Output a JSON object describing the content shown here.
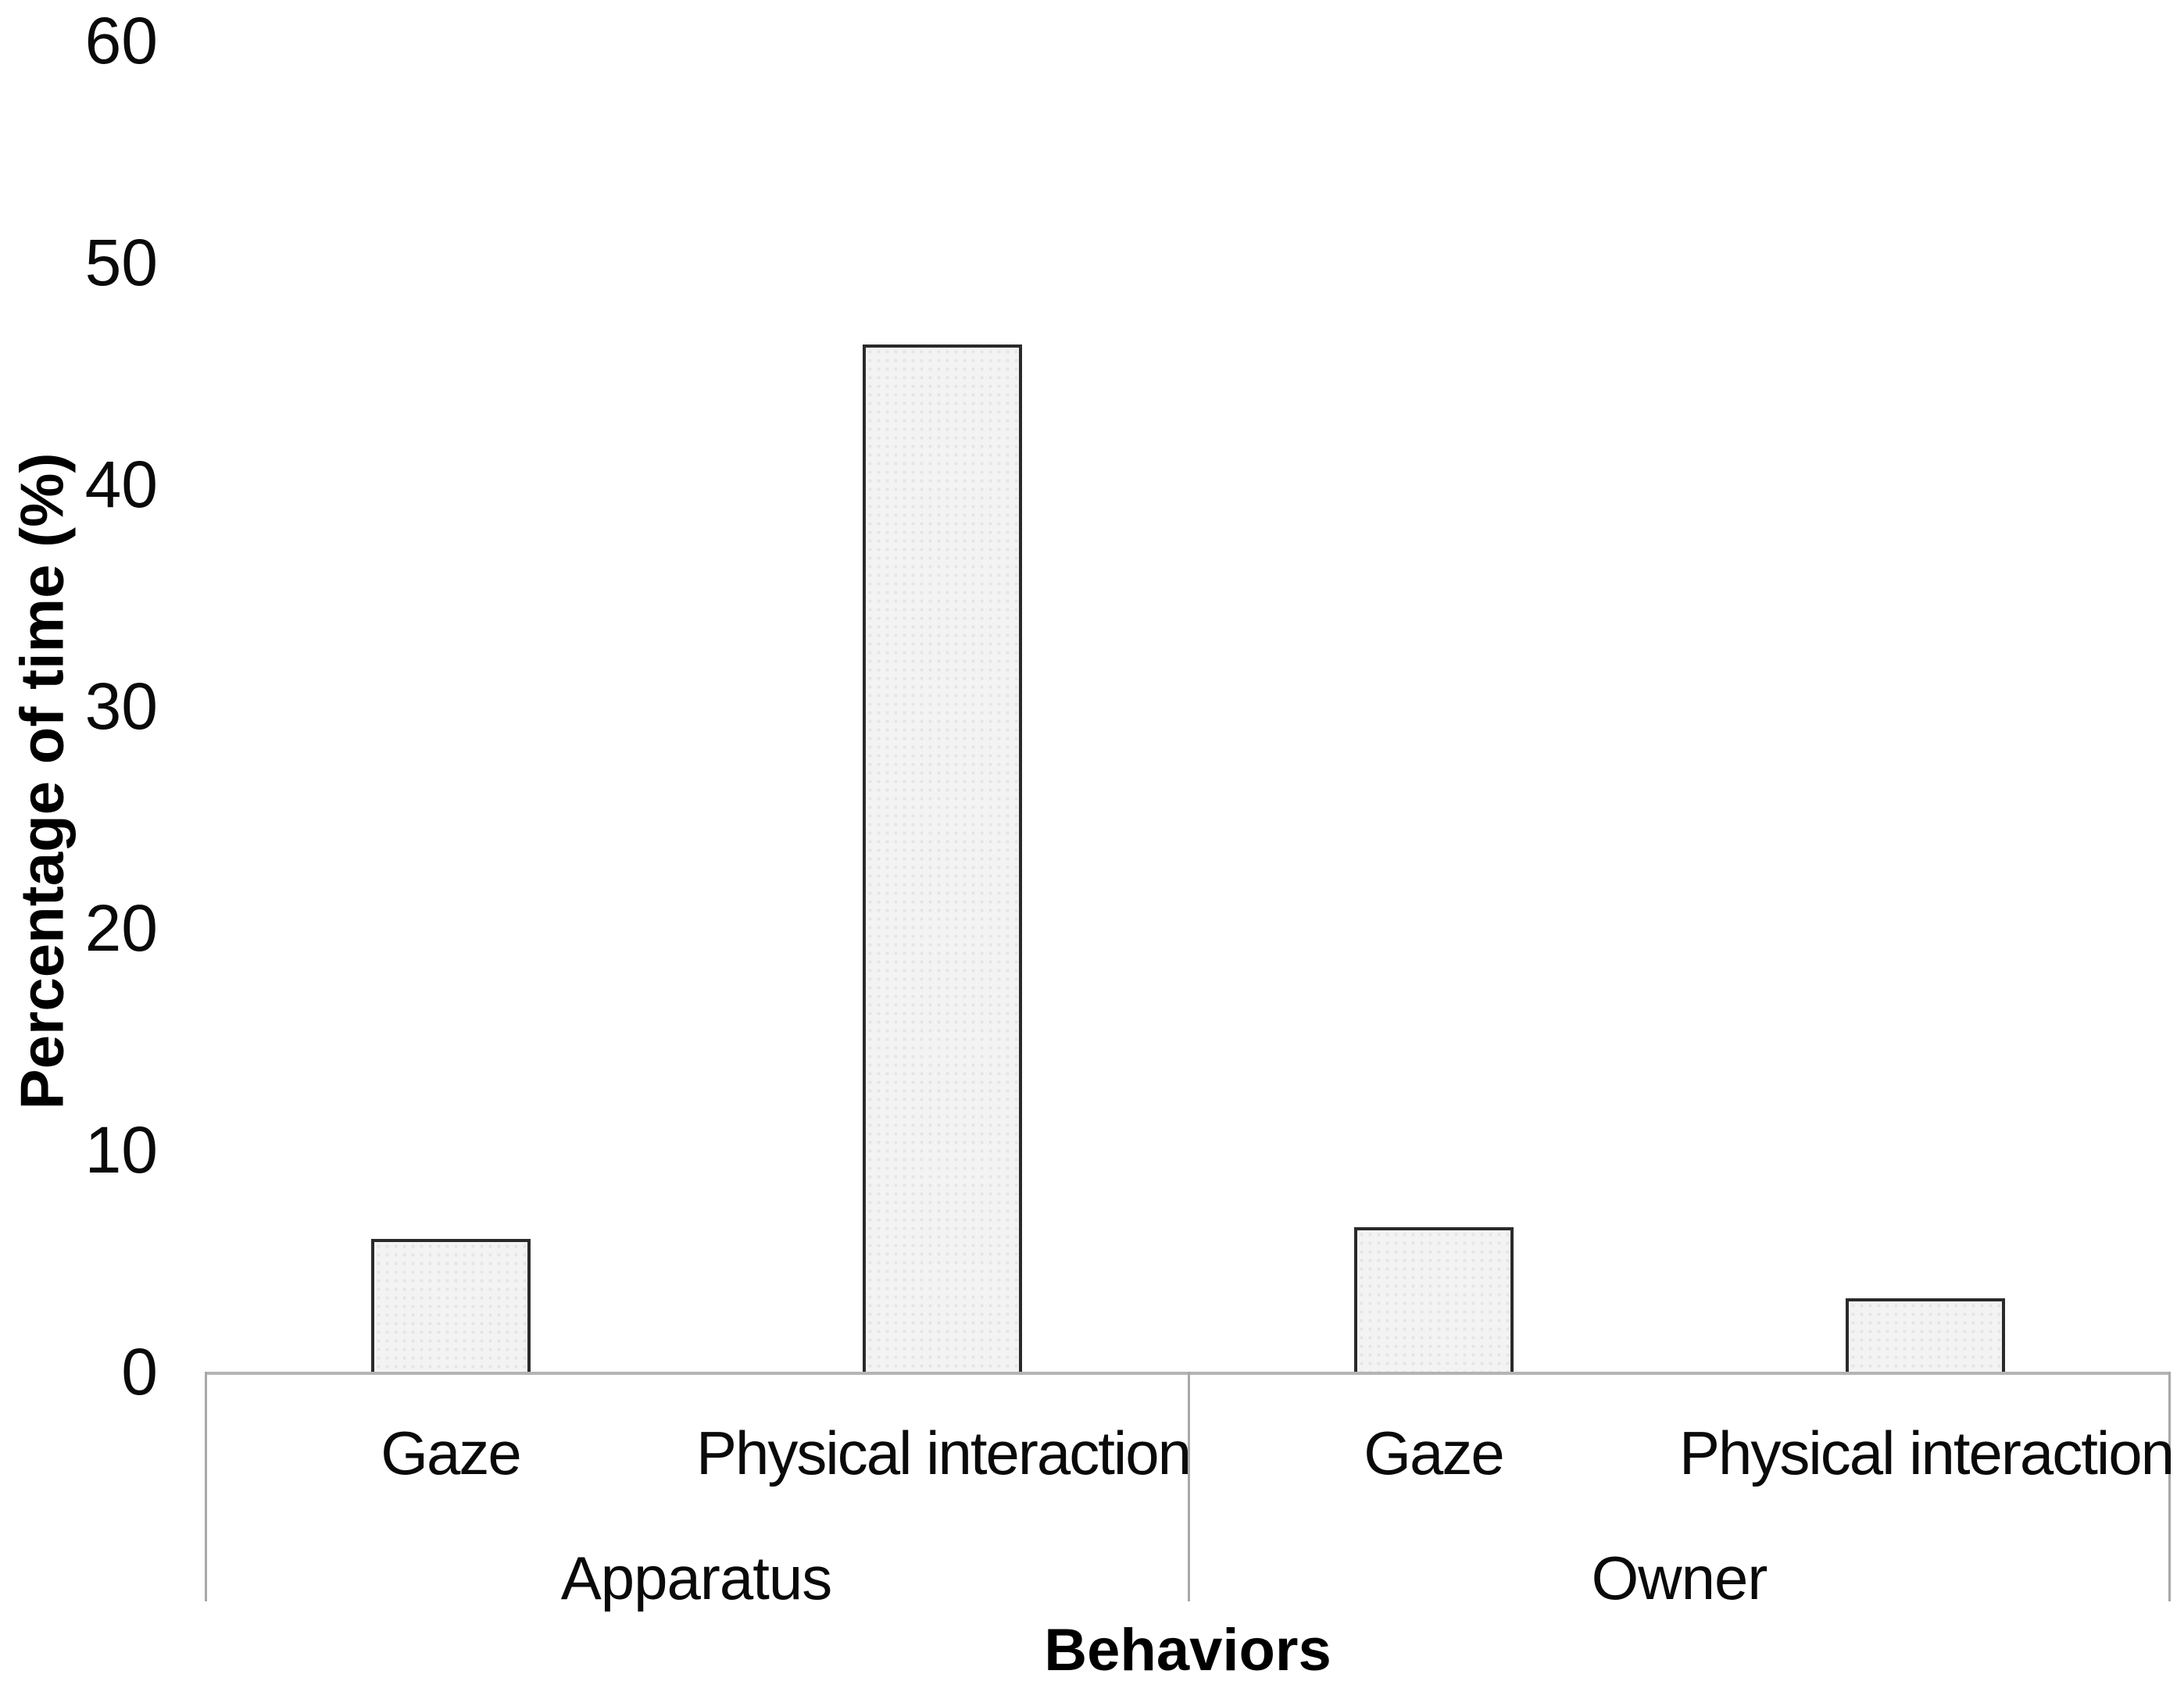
{
  "chart_data": {
    "type": "bar",
    "title": "",
    "ylabel": "Percentage of time (%)",
    "xlabel": "Behaviors",
    "ylim": [
      0,
      60
    ],
    "yticks": [
      0,
      10,
      20,
      30,
      40,
      50,
      60
    ],
    "grid": false,
    "legend": false,
    "bar_fill_color": "#f3f3f3",
    "bar_border_color": "#2a2a2a",
    "axis_line_color": "#b4b4b4",
    "categories": [
      "Gaze",
      "Physical interaction",
      "Gaze",
      "Physical interaction"
    ],
    "groups": [
      {
        "label": "Apparatus",
        "categories": [
          "Gaze",
          "Physical interaction"
        ],
        "values": [
          6.0,
          46.3
        ]
      },
      {
        "label": "Owner",
        "categories": [
          "Gaze",
          "Physical interaction"
        ],
        "values": [
          6.5,
          3.3
        ]
      }
    ]
  }
}
